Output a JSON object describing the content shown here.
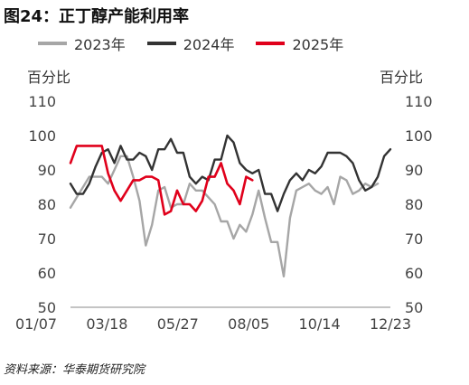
{
  "title": "图24：正丁醇产能利用率",
  "unit_left": "百分比",
  "unit_right": "百分比",
  "source": "资料来源：华泰期货研究院",
  "colors": {
    "2023年": "#a6a6a6",
    "2024年": "#333333",
    "2025年": "#e0001b"
  },
  "chart_data": {
    "type": "line",
    "title": "图24：正丁醇产能利用率",
    "ylabel_left": "百分比",
    "ylabel_right": "百分比",
    "ylim": [
      50,
      110
    ],
    "yticks": [
      50,
      60,
      70,
      80,
      90,
      100,
      110
    ],
    "xtick_labels": [
      "01/07",
      "03/18",
      "05/27",
      "08/05",
      "10/14",
      "12/23"
    ],
    "x_unit": "week index (0 = 01/07)",
    "xlim": [
      0,
      51
    ],
    "legend_position": "top-left",
    "grid": false,
    "series": [
      {
        "name": "2023年",
        "values": [
          79,
          82,
          85,
          88,
          88,
          88,
          86,
          90,
          94,
          94,
          88,
          81,
          68,
          74,
          84,
          85,
          79,
          80,
          80,
          86,
          84,
          84,
          82,
          80,
          75,
          75,
          70,
          74,
          72,
          77,
          84,
          76,
          69,
          69,
          59,
          76,
          84,
          85,
          86,
          84,
          83,
          85,
          80,
          88,
          87,
          83,
          84,
          86,
          85,
          86
        ]
      },
      {
        "name": "2024年",
        "values": [
          86,
          83,
          83,
          86,
          91,
          95,
          96,
          92,
          97,
          93,
          93,
          95,
          94,
          90,
          96,
          96,
          99,
          95,
          95,
          88,
          86,
          88,
          87,
          93,
          93,
          100,
          98,
          92,
          90,
          89,
          90,
          83,
          83,
          78,
          83,
          87,
          89,
          87,
          90,
          89,
          91,
          95,
          95,
          95,
          94,
          92,
          87,
          84,
          85,
          88,
          94,
          96
        ]
      },
      {
        "name": "2025年",
        "values": [
          92,
          97,
          97,
          97,
          97,
          97,
          89,
          84,
          81,
          84,
          87,
          87,
          88,
          88,
          87,
          77,
          78,
          84,
          80,
          80,
          78,
          81,
          88,
          88,
          92,
          86,
          84,
          80,
          88,
          87
        ]
      }
    ]
  }
}
